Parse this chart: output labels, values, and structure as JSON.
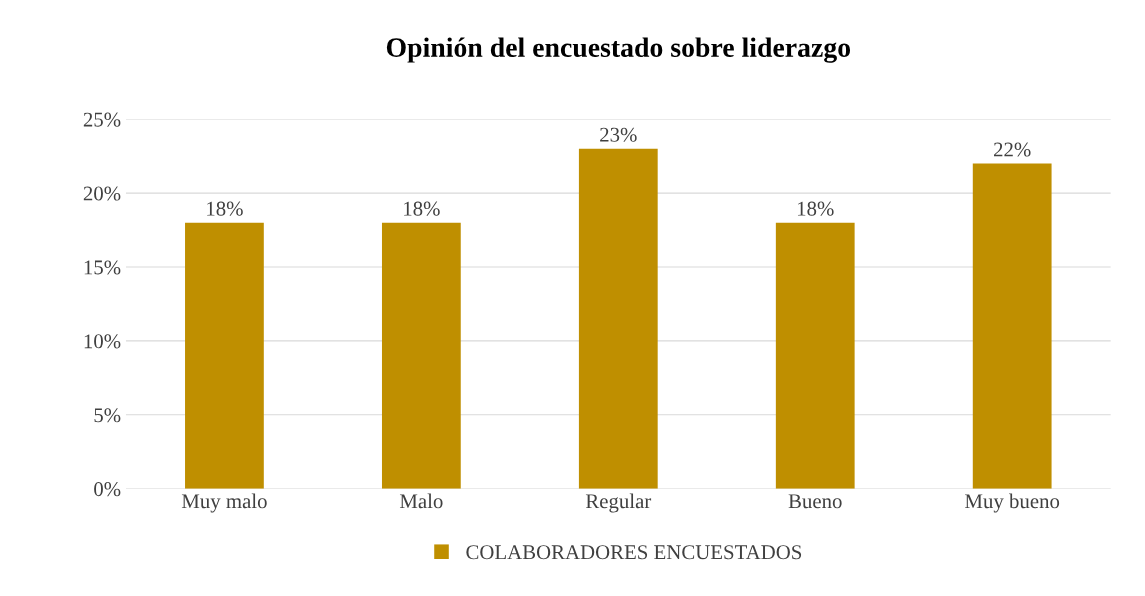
{
  "chart_data": {
    "type": "bar",
    "title": "Opinión del encuestado sobre liderazgo",
    "categories": [
      "Muy malo",
      "Malo",
      "Regular",
      "Bueno",
      "Muy bueno"
    ],
    "series": [
      {
        "name": "COLABORADORES ENCUESTADOS",
        "color": "#bf8f00",
        "values": [
          18,
          18,
          23,
          18,
          22
        ],
        "value_labels": [
          "18%",
          "18%",
          "23%",
          "18%",
          "22%"
        ]
      }
    ],
    "ylim": [
      0,
      25
    ],
    "yticks": [
      {
        "value": 0,
        "label": "0%"
      },
      {
        "value": 5,
        "label": "5%"
      },
      {
        "value": 10,
        "label": "10%"
      },
      {
        "value": 15,
        "label": "15%"
      },
      {
        "value": 20,
        "label": "20%"
      },
      {
        "value": 25,
        "label": "25%"
      }
    ],
    "grid": "y",
    "legend": "bottom"
  }
}
